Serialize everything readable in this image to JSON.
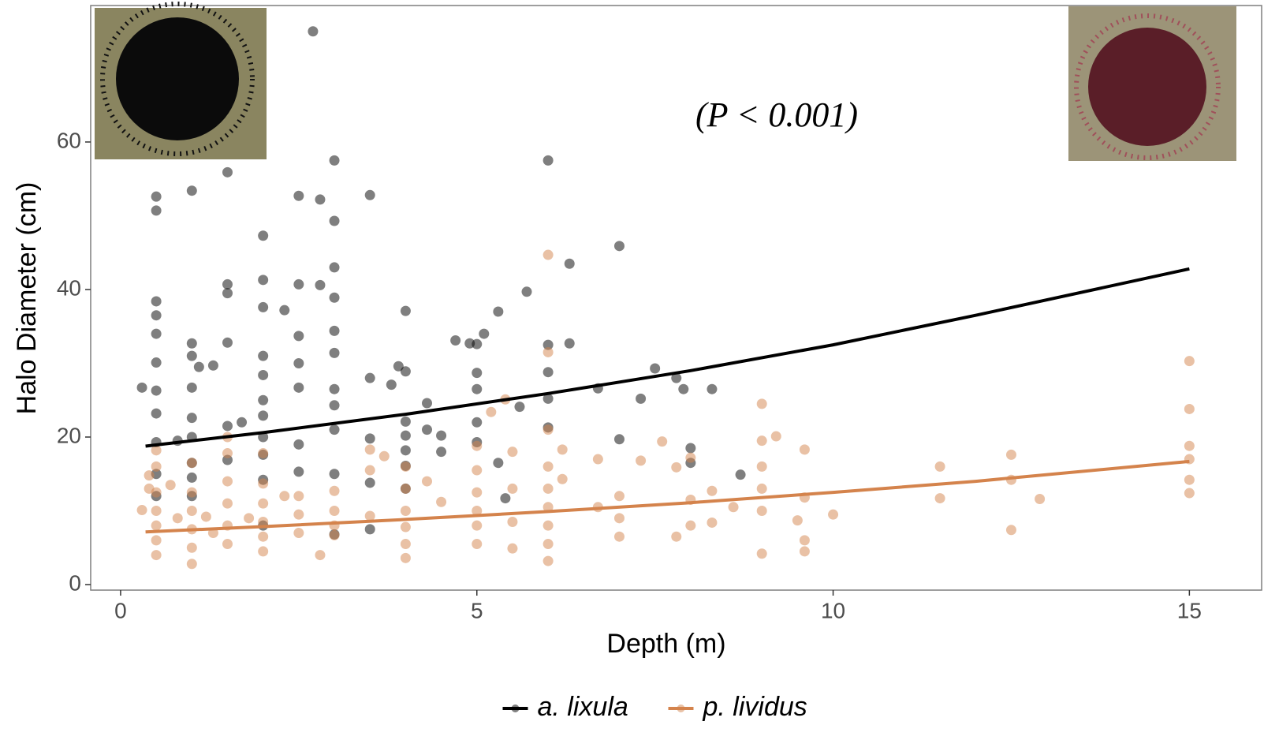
{
  "chart_data": {
    "type": "scatter",
    "x_label": "Depth (m)",
    "y_label": "Halo Diameter (cm)",
    "annotation": "(P < 0.001)",
    "xlim": [
      -0.42,
      15.66
    ],
    "ylim": [
      -0.75,
      78.5
    ],
    "xticks": [
      0,
      5,
      10,
      15
    ],
    "yticks": [
      0,
      20,
      40,
      60
    ],
    "grid": false,
    "legend": "bottom",
    "point_alpha": 0.5,
    "series": [
      {
        "name": "a. lixula",
        "color": "#000000",
        "x": [
          0.3,
          0.5,
          0.5,
          0.5,
          0.5,
          0.5,
          0.5,
          0.5,
          0.5,
          0.5,
          0.5,
          0.5,
          0.8,
          1,
          1,
          1,
          1,
          1,
          1,
          1,
          1,
          1,
          1.1,
          1.3,
          1.5,
          1.5,
          1.5,
          1.5,
          1.5,
          1.5,
          1.7,
          2,
          2,
          2,
          2,
          2,
          2,
          2,
          2,
          2,
          2,
          2,
          2.3,
          2.5,
          2.5,
          2.5,
          2.5,
          2.5,
          2.5,
          2.5,
          2.7,
          2.8,
          2.8,
          3,
          3,
          3,
          3,
          3,
          3,
          3,
          3,
          3,
          3,
          3,
          3.5,
          3.5,
          3.5,
          3.5,
          3.5,
          3.8,
          3.9,
          4,
          4,
          4,
          4,
          4,
          4,
          4,
          4.3,
          4.3,
          4.5,
          4.5,
          4.7,
          4.9,
          5,
          5,
          5,
          5,
          5,
          5.1,
          5.3,
          5.3,
          5.4,
          5.6,
          5.7,
          6,
          6,
          6,
          6,
          6,
          6.3,
          6.3,
          6.7,
          7,
          7,
          7.3,
          7.5,
          7.8,
          7.9,
          8,
          8,
          8.3,
          8.7
        ],
        "values": [
          26.7,
          52.6,
          50.7,
          38.4,
          36.5,
          34,
          30.1,
          26.3,
          23.2,
          19.3,
          15,
          12,
          19.5,
          32.7,
          31,
          26.7,
          22.6,
          20,
          16.5,
          14.5,
          12,
          53.4,
          29.5,
          29.7,
          55.9,
          40.7,
          39.5,
          32.8,
          21.5,
          16.9,
          22,
          47.3,
          41.3,
          37.6,
          31,
          28.4,
          25,
          22.9,
          20,
          17.6,
          14.2,
          8,
          37.2,
          52.7,
          40.7,
          33.7,
          30,
          26.7,
          19,
          15.3,
          75,
          52.2,
          40.6,
          57.5,
          49.3,
          43,
          38.9,
          34.4,
          31.4,
          26.5,
          24.3,
          21,
          15,
          6.8,
          52.8,
          28,
          19.8,
          13.8,
          7.5,
          27.1,
          29.6,
          37.1,
          28.9,
          22.1,
          20.2,
          18.2,
          16.1,
          13,
          24.6,
          21,
          20.2,
          18,
          33.1,
          32.7,
          32.6,
          28.7,
          26.5,
          22,
          19.3,
          34,
          37,
          16.5,
          11.7,
          24.1,
          39.7,
          57.5,
          32.5,
          28.8,
          25.2,
          21.3,
          43.5,
          32.7,
          26.6,
          45.9,
          19.7,
          25.2,
          29.3,
          28,
          26.5,
          18.5,
          16.5,
          26.5,
          14.9
        ],
        "fit": {
          "x": [
            0.35,
            2,
            4,
            6,
            8,
            10,
            12,
            15
          ],
          "values": [
            18.77,
            20.6,
            23.09,
            25.9,
            29.0,
            32.5,
            36.5,
            42.8
          ]
        }
      },
      {
        "name": "p. lividus",
        "color": "#d4834c",
        "x": [
          0.3,
          0.4,
          0.4,
          0.5,
          0.5,
          0.5,
          0.5,
          0.5,
          0.5,
          0.5,
          0.7,
          0.8,
          1,
          1,
          1,
          1,
          1,
          1,
          1.2,
          1.3,
          1.5,
          1.5,
          1.5,
          1.5,
          1.5,
          1.5,
          1.8,
          2,
          2,
          2,
          2,
          2,
          2,
          2.3,
          2.5,
          2.5,
          2.5,
          2.8,
          3,
          3,
          3,
          3,
          3.5,
          3.5,
          3.5,
          3.7,
          4,
          4,
          4,
          4,
          4,
          4,
          4.3,
          4.5,
          5,
          5,
          5,
          5,
          5,
          5,
          5.2,
          5.4,
          5.5,
          5.5,
          5.5,
          5.5,
          6,
          6,
          6,
          6,
          6,
          6,
          6,
          6,
          6,
          6.2,
          6.2,
          6.7,
          6.7,
          7,
          7,
          7,
          7.3,
          7.6,
          7.8,
          7.8,
          8,
          8,
          8,
          8.3,
          8.3,
          8.6,
          9,
          9,
          9,
          9,
          9,
          9,
          9.2,
          9.5,
          9.6,
          9.6,
          9.6,
          9.6,
          10,
          11.5,
          11.5,
          12.5,
          12.5,
          12.5,
          12.9,
          15,
          15,
          15,
          15,
          15,
          15
        ],
        "values": [
          10.1,
          13,
          14.8,
          18.2,
          16,
          12.5,
          10,
          8,
          6,
          4,
          13.5,
          9,
          16.5,
          12.5,
          10,
          7.5,
          5,
          2.8,
          9.2,
          7,
          20,
          17.8,
          14,
          11,
          8,
          5.5,
          9,
          17.8,
          13.7,
          11,
          8.5,
          6.5,
          4.5,
          12,
          12,
          9.5,
          7,
          4,
          12.7,
          10,
          8,
          6.7,
          18.3,
          15.5,
          9.3,
          17.4,
          16,
          13,
          10,
          7.8,
          5.5,
          3.6,
          14,
          11.2,
          18.8,
          15.5,
          12.5,
          10,
          8,
          5.5,
          23.4,
          25.1,
          18,
          13,
          8.5,
          4.9,
          44.7,
          31.5,
          21,
          16,
          13,
          10.5,
          8,
          5.5,
          3.2,
          18.3,
          14.3,
          17,
          10.5,
          12,
          9,
          6.5,
          16.8,
          19.4,
          15.9,
          6.5,
          17.2,
          11.5,
          8,
          12.7,
          8.4,
          10.5,
          24.5,
          19.5,
          16,
          13,
          10,
          4.2,
          20.1,
          8.7,
          18.3,
          11.8,
          6,
          4.5,
          9.5,
          16,
          11.7,
          17.6,
          14.2,
          7.4,
          11.6,
          30.3,
          23.8,
          18.8,
          17,
          14.2,
          12.4
        ],
        "fit": {
          "x": [
            0.35,
            2,
            4,
            6,
            8,
            10,
            12,
            15
          ],
          "values": [
            7.14,
            7.86,
            8.83,
            9.9,
            11.1,
            12.5,
            14.0,
            16.7
          ]
        }
      }
    ]
  }
}
